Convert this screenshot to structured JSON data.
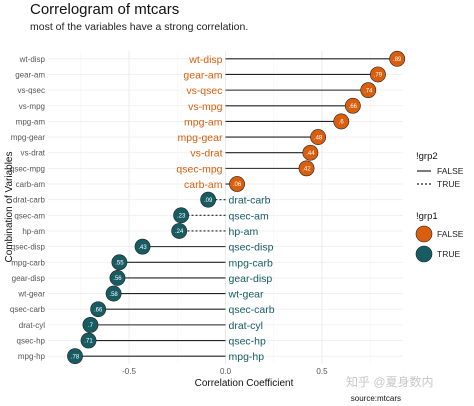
{
  "chart_data": {
    "type": "lollipop",
    "title": "Correlogram of mtcars",
    "subtitle": "most of the variables have a strong correlation.",
    "xlabel": "Correlation Coefficient",
    "ylabel": "Combination of Variables",
    "caption": "source:mtcars",
    "xlim": [
      -0.92,
      0.92
    ],
    "x_ticks": [
      -0.5,
      0.0,
      0.5
    ],
    "x_tick_labels": [
      "-0.5",
      "0.0",
      "0.5"
    ],
    "grid": true,
    "legend_position": "right",
    "colors": {
      "FALSE": "#d95f0e",
      "TRUE": "#175c63"
    },
    "legend_linetype": {
      "title": "!grp2",
      "entries": [
        "FALSE",
        "TRUE"
      ]
    },
    "legend_fill": {
      "title": "!grp1",
      "entries": [
        "FALSE",
        "TRUE"
      ]
    },
    "categories": [
      "wt-disp",
      "gear-am",
      "vs-qsec",
      "vs-mpg",
      "mpg-am",
      "mpg-gear",
      "vs-drat",
      "qsec-mpg",
      "carb-am",
      "drat-carb",
      "qsec-am",
      "hp-am",
      "qsec-disp",
      "mpg-carb",
      "gear-disp",
      "wt-gear",
      "qsec-carb",
      "drat-cyl",
      "qsec-hp",
      "mpg-hp"
    ],
    "values": [
      0.89,
      0.79,
      0.74,
      0.66,
      0.6,
      0.48,
      0.44,
      0.42,
      0.06,
      -0.09,
      -0.23,
      -0.24,
      -0.43,
      -0.55,
      -0.56,
      -0.58,
      -0.66,
      -0.7,
      -0.71,
      -0.78
    ],
    "point_labels": [
      ".89",
      ".79",
      ".74",
      ".66",
      ".6",
      ".48",
      ".44",
      ".42",
      ".06",
      ".09",
      ".23",
      ".24",
      ".43",
      ".55",
      ".56",
      ".58",
      ".66",
      ".7",
      ".71",
      ".78"
    ],
    "negative": [
      false,
      false,
      false,
      false,
      false,
      false,
      false,
      false,
      false,
      true,
      true,
      true,
      true,
      true,
      true,
      true,
      true,
      true,
      true,
      true
    ]
  },
  "watermark": "知乎 @夏身数内"
}
